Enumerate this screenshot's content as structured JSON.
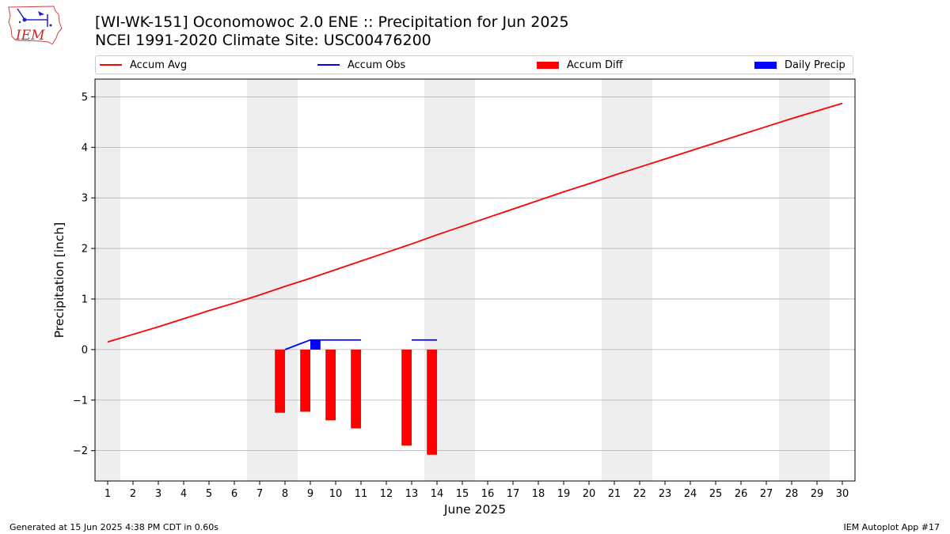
{
  "header": {
    "logo_text": "IEM",
    "title": "[WI-WK-151] Oconomowoc 2.0 ENE :: Precipitation for Jun 2025",
    "subtitle": "NCEI 1991-2020 Climate Site: USC00476200"
  },
  "colors": {
    "accum_avg": "#ff0000",
    "accum_obs": "#0000ff",
    "accum_diff": "#ff0000",
    "daily_precip": "#0000ff",
    "weekend_shade": "#eeeeee",
    "grid": "#b0b0b0"
  },
  "legend": [
    {
      "label": "Accum Avg",
      "kind": "line",
      "color": "#ff0000"
    },
    {
      "label": "Accum Obs",
      "kind": "line",
      "color": "#0000ff"
    },
    {
      "label": "Accum Diff",
      "kind": "bar",
      "color": "#ff0000"
    },
    {
      "label": "Daily Precip",
      "kind": "bar",
      "color": "#0000ff"
    }
  ],
  "footer": {
    "left": "Generated at 15 Jun 2025 4:38 PM CDT in 0.60s",
    "right": "IEM Autoplot App #17"
  },
  "chart_data": {
    "type": "line",
    "xlabel": "June 2025",
    "ylabel": "Precipitation [inch]",
    "xlim": [
      0.5,
      30.5
    ],
    "ylim": [
      -2.6,
      5.35
    ],
    "x_ticks": [
      "1",
      "2",
      "3",
      "4",
      "5",
      "6",
      "7",
      "8",
      "9",
      "10",
      "11",
      "12",
      "13",
      "14",
      "15",
      "16",
      "17",
      "18",
      "19",
      "20",
      "21",
      "22",
      "23",
      "24",
      "25",
      "26",
      "27",
      "28",
      "29",
      "30"
    ],
    "y_ticks": [
      -2,
      -1,
      0,
      1,
      2,
      3,
      4,
      5
    ],
    "y_tick_labels": [
      "−2",
      "−1",
      "0",
      "1",
      "2",
      "3",
      "4",
      "5"
    ],
    "grid": true,
    "legend_position": "top",
    "weekend_day_ranges": [
      [
        0.5,
        1.5
      ],
      [
        6.5,
        8.5
      ],
      [
        13.5,
        15.5
      ],
      [
        20.5,
        22.5
      ],
      [
        27.5,
        29.5
      ]
    ],
    "series": [
      {
        "name": "Accum Avg",
        "kind": "line",
        "x": [
          1,
          2,
          3,
          4,
          5,
          6,
          7,
          8,
          9,
          10,
          11,
          12,
          13,
          14,
          15,
          16,
          17,
          18,
          19,
          20,
          21,
          22,
          23,
          24,
          25,
          26,
          27,
          28,
          29,
          30
        ],
        "values": [
          0.15,
          0.3,
          0.45,
          0.61,
          0.77,
          0.92,
          1.08,
          1.25,
          1.41,
          1.58,
          1.75,
          1.92,
          2.09,
          2.27,
          2.44,
          2.61,
          2.78,
          2.95,
          3.12,
          3.28,
          3.45,
          3.61,
          3.77,
          3.93,
          4.09,
          4.25,
          4.41,
          4.57,
          4.72,
          4.87
        ]
      },
      {
        "name": "Accum Obs",
        "kind": "line",
        "segments": [
          {
            "x": [
              8,
              9,
              10,
              11
            ],
            "values": [
              0.0,
              0.19,
              0.19,
              0.19
            ]
          },
          {
            "x": [
              13,
              14
            ],
            "values": [
              0.19,
              0.19
            ]
          }
        ]
      },
      {
        "name": "Accum Diff",
        "kind": "bar",
        "x": [
          7.8,
          8.8,
          9.8,
          10.8,
          12.8,
          13.8
        ],
        "values": [
          -1.25,
          -1.23,
          -1.4,
          -1.56,
          -1.9,
          -2.08
        ]
      },
      {
        "name": "Daily Precip",
        "kind": "bar",
        "x": [
          9.2
        ],
        "values": [
          0.19
        ]
      }
    ]
  }
}
